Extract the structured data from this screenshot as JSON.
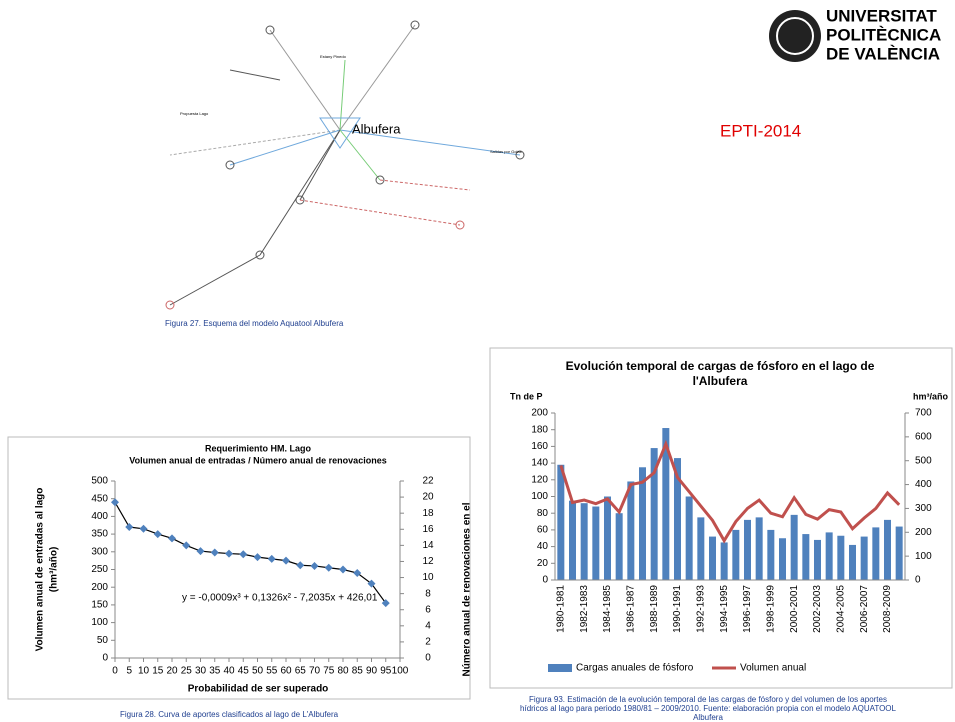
{
  "logo": {
    "lines": [
      "UNIVERSITAT",
      "POLITÈCNICA",
      "DE VALÈNCIA"
    ]
  },
  "tag": "EPTI-2014",
  "diagram": {
    "labels": [
      "Albufera",
      "Salidas por Golas",
      "Propuesta Lago",
      "Estany Pinedo"
    ],
    "caption": "Figura 27.      Esquema del modelo Aquatool Albufera"
  },
  "chart_data": [
    {
      "type": "scatter",
      "title": [
        "Requerimiento HM. Lago",
        "Volumen anual de entradas / Número anual de renovaciones"
      ],
      "ylabel": [
        "Volumen anual de entradas al lago",
        "(hm³/año)"
      ],
      "y2label": "Número anual de renovaciones en el",
      "xlabel": "Probabilidad de ser superado",
      "annotation": "y = -0,0009x³ + 0,1326x² - 7,2035x + 426,01",
      "caption": "Figura 28.      Curva de aportes clasificados al lago de L'Albufera",
      "color": "#4f81bd",
      "x": [
        0,
        5,
        10,
        15,
        20,
        25,
        30,
        35,
        40,
        45,
        50,
        55,
        60,
        65,
        70,
        75,
        80,
        85,
        90,
        95
      ],
      "values": [
        440,
        370,
        365,
        350,
        338,
        318,
        302,
        298,
        295,
        293,
        285,
        280,
        275,
        262,
        260,
        255,
        250,
        240,
        210,
        155
      ],
      "xlim": [
        0,
        100
      ],
      "xticks": [
        0,
        5,
        10,
        15,
        20,
        25,
        30,
        35,
        40,
        45,
        50,
        55,
        60,
        65,
        70,
        75,
        80,
        85,
        90,
        95,
        100
      ],
      "ylim": [
        0,
        500
      ],
      "yticks": [
        0,
        50,
        100,
        150,
        200,
        250,
        300,
        350,
        400,
        450,
        500
      ],
      "y2lim": [
        0,
        22
      ],
      "y2ticks": [
        0,
        2,
        4,
        6,
        8,
        10,
        12,
        14,
        16,
        18,
        20,
        22
      ]
    },
    {
      "type": "bar",
      "title": [
        "Evolución temporal de cargas de fósforo en el lago de",
        "l'Albufera"
      ],
      "ylabel": "Tn de P",
      "y2label": "hm³/año",
      "caption": [
        "Figura 93.      Estimación de la evolución temporal de las cargas de fósforo y del volumen de los aportes",
        "hídricos al lago para periodo 1980/81 – 2009/2010. Fuente: elaboración propia con el modelo AQUATOOL",
        "Albufera"
      ],
      "categories": [
        "1980-1981",
        null,
        "1982-1983",
        null,
        "1984-1985",
        null,
        "1986-1987",
        null,
        "1988-1989",
        null,
        "1990-1991",
        null,
        "1992-1993",
        null,
        "1994-1995",
        null,
        "1996-1997",
        null,
        "1998-1999",
        null,
        "2000-2001",
        null,
        "2002-2003",
        null,
        "2004-2005",
        null,
        "2006-2007",
        null,
        "2008-2009",
        null
      ],
      "series": [
        {
          "name": "Cargas anuales de fósforo",
          "color": "#4f81bd",
          "values": [
            138,
            95,
            92,
            88,
            100,
            80,
            118,
            135,
            158,
            182,
            146,
            100,
            75,
            52,
            45,
            60,
            72,
            75,
            60,
            50,
            78,
            55,
            48,
            57,
            53,
            42,
            52,
            63,
            72,
            64
          ]
        },
        {
          "name": "Volumen anual",
          "color": "#c0504d",
          "axis": "y2",
          "values": [
            480,
            325,
            335,
            320,
            340,
            285,
            400,
            410,
            450,
            570,
            430,
            370,
            310,
            250,
            165,
            245,
            300,
            335,
            280,
            265,
            345,
            275,
            255,
            295,
            285,
            215,
            260,
            300,
            365,
            315
          ]
        }
      ],
      "ylim": [
        0,
        200
      ],
      "yticks": [
        0,
        20,
        40,
        60,
        80,
        100,
        120,
        140,
        160,
        180,
        200
      ],
      "y2lim": [
        0,
        700
      ],
      "y2ticks": [
        0,
        100,
        200,
        300,
        400,
        500,
        600,
        700
      ]
    }
  ]
}
